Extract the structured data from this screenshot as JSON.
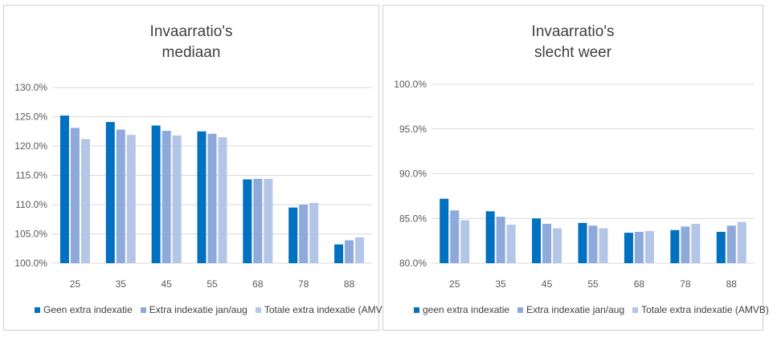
{
  "colors": {
    "series1": "#0070c0",
    "series2": "#8eaadb",
    "series3": "#b4c6e7",
    "grid": "#d9d9d9",
    "text": "#595959"
  },
  "chart_data": [
    {
      "type": "bar",
      "title": [
        "Invaarratio's",
        "mediaan"
      ],
      "categories": [
        "25",
        "35",
        "45",
        "55",
        "68",
        "78",
        "88"
      ],
      "ylim": [
        1.0,
        1.3
      ],
      "yticks": [
        1.0,
        1.05,
        1.1,
        1.15,
        1.2,
        1.25,
        1.3
      ],
      "ytick_labels": [
        "100.0%",
        "105.0%",
        "110.0%",
        "115.0%",
        "120.0%",
        "125.0%",
        "130.0%"
      ],
      "grid": true,
      "legend_position": "bottom",
      "series": [
        {
          "name": "Geen extra indexatie",
          "values": [
            1.252,
            1.241,
            1.235,
            1.225,
            1.143,
            1.095,
            1.032
          ]
        },
        {
          "name": "Extra indexatie jan/aug",
          "values": [
            1.231,
            1.228,
            1.226,
            1.221,
            1.144,
            1.1,
            1.039
          ]
        },
        {
          "name": "Totale extra indexatie (AMVB)",
          "values": [
            1.212,
            1.219,
            1.218,
            1.215,
            1.144,
            1.103,
            1.044
          ]
        }
      ]
    },
    {
      "type": "bar",
      "title": [
        "Invaarratio's",
        "slecht weer"
      ],
      "categories": [
        "25",
        "35",
        "45",
        "55",
        "68",
        "78",
        "88"
      ],
      "ylim": [
        0.8,
        1.0
      ],
      "yticks": [
        0.8,
        0.85,
        0.9,
        0.95,
        1.0
      ],
      "ytick_labels": [
        "80.0%",
        "85.0%",
        "90.0%",
        "95.0%",
        "100.0%"
      ],
      "grid": true,
      "legend_position": "bottom",
      "series": [
        {
          "name": "geen extra indexatie",
          "values": [
            0.872,
            0.858,
            0.85,
            0.845,
            0.834,
            0.837,
            0.835
          ]
        },
        {
          "name": "Extra indexatie jan/aug",
          "values": [
            0.859,
            0.852,
            0.844,
            0.842,
            0.835,
            0.841,
            0.842
          ]
        },
        {
          "name": "Totale extra indexatie (AMVB)",
          "values": [
            0.848,
            0.843,
            0.839,
            0.839,
            0.836,
            0.844,
            0.846
          ]
        }
      ]
    }
  ]
}
